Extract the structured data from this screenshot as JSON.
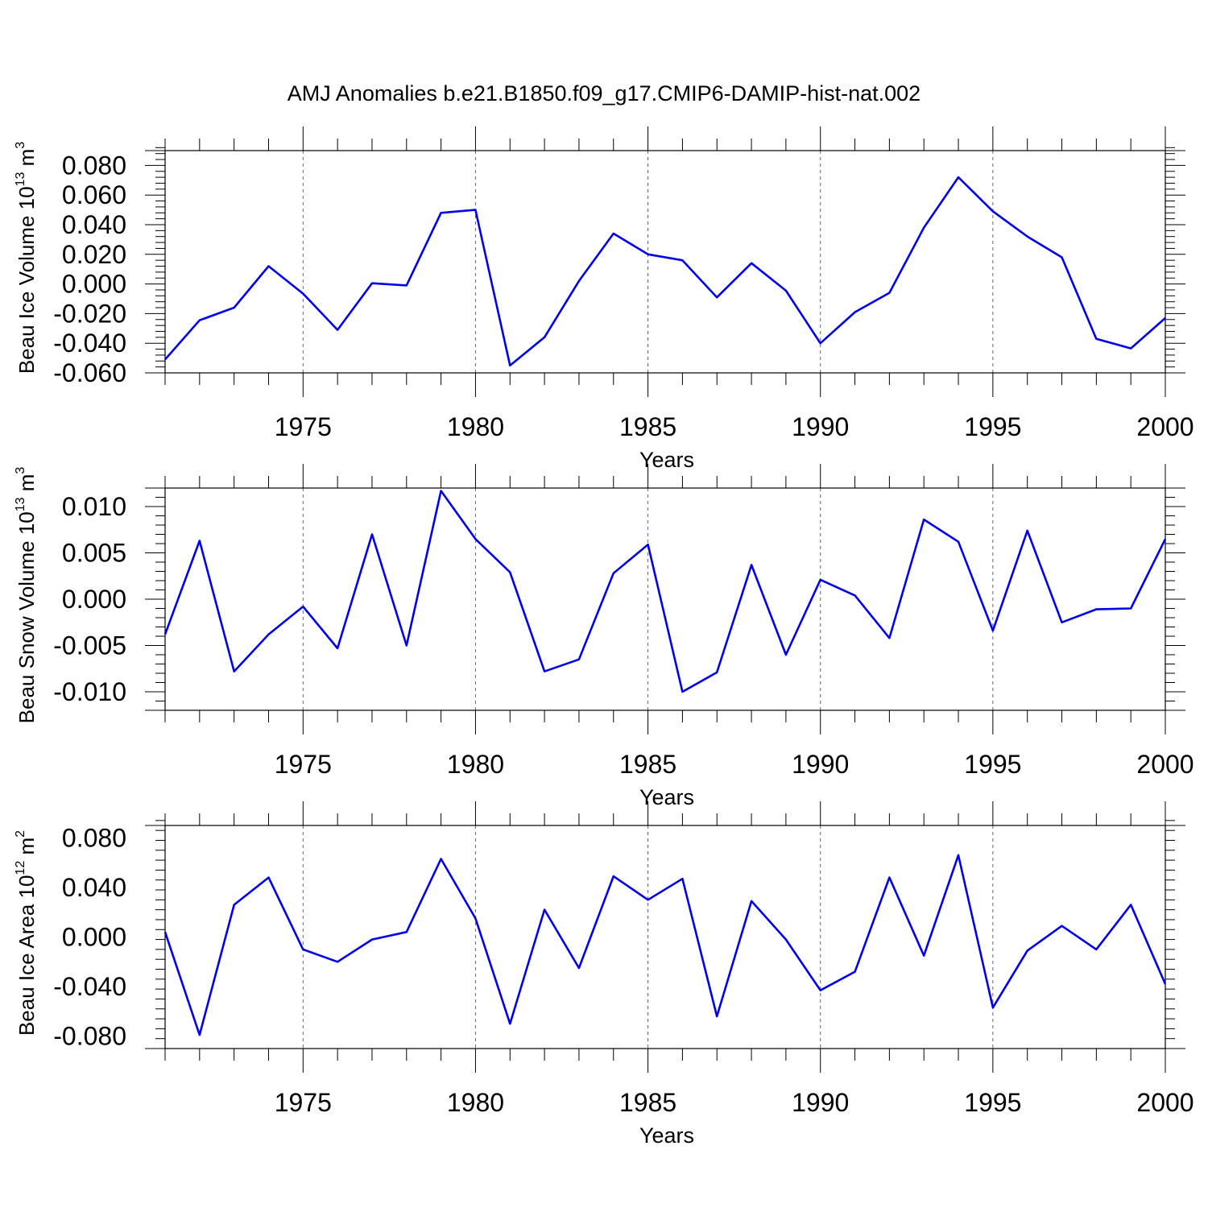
{
  "title": "AMJ Anomalies b.e21.B1850.f09_g17.CMIP6-DAMIP-hist-nat.002",
  "colors": {
    "series": "#0000ee",
    "grid": "#666666",
    "axis": "#000000"
  },
  "chart_data": [
    {
      "type": "line",
      "ylabel": {
        "text": "Beau Ice Volume 10",
        "exp": "13",
        "unit": " m",
        "unit_exp": "3"
      },
      "xlabel": "Years",
      "xlim": [
        1971,
        2000
      ],
      "ylim": [
        -0.06,
        0.09
      ],
      "xticks": [
        1975,
        1980,
        1985,
        1990,
        1995,
        2000
      ],
      "yticks": [
        -0.06,
        -0.04,
        -0.02,
        0.0,
        0.02,
        0.04,
        0.06,
        0.08
      ],
      "ytick_labels": [
        "-0.060",
        "-0.040",
        "-0.020",
        "0.000",
        "0.020",
        "0.040",
        "0.060",
        "0.080"
      ],
      "grid": "vertical dashed at major x ticks",
      "x": [
        1971,
        1972,
        1973,
        1974,
        1975,
        1976,
        1977,
        1978,
        1979,
        1980,
        1981,
        1982,
        1983,
        1984,
        1985,
        1986,
        1987,
        1988,
        1989,
        1990,
        1991,
        1992,
        1993,
        1994,
        1995,
        1996,
        1997,
        1998,
        1999,
        2000
      ],
      "values": [
        -0.051,
        -0.0245,
        -0.016,
        0.012,
        -0.0065,
        -0.031,
        0.0005,
        -0.001,
        0.048,
        0.05,
        -0.055,
        -0.036,
        0.002,
        0.034,
        0.02,
        0.016,
        -0.009,
        0.014,
        -0.0045,
        -0.04,
        -0.019,
        -0.006,
        0.038,
        0.072,
        0.049,
        0.032,
        0.018,
        -0.037,
        -0.0435,
        -0.023
      ]
    },
    {
      "type": "line",
      "ylabel": {
        "text": "Beau Snow Volume 10",
        "exp": "13",
        "unit": " m",
        "unit_exp": "3"
      },
      "xlabel": "Years",
      "xlim": [
        1971,
        2000
      ],
      "ylim": [
        -0.012,
        0.012
      ],
      "xticks": [
        1975,
        1980,
        1985,
        1990,
        1995,
        2000
      ],
      "yticks": [
        -0.01,
        -0.005,
        0.0,
        0.005,
        0.01
      ],
      "ytick_labels": [
        "-0.010",
        "-0.005",
        "0.000",
        "0.005",
        "0.010"
      ],
      "grid": "vertical dashed at major x ticks",
      "x": [
        1971,
        1972,
        1973,
        1974,
        1975,
        1976,
        1977,
        1978,
        1979,
        1980,
        1981,
        1982,
        1983,
        1984,
        1985,
        1986,
        1987,
        1988,
        1989,
        1990,
        1991,
        1992,
        1993,
        1994,
        1995,
        1996,
        1997,
        1998,
        1999,
        2000
      ],
      "values": [
        -0.0038,
        0.0063,
        -0.0078,
        -0.0038,
        -0.0008,
        -0.0053,
        0.007,
        -0.005,
        0.0117,
        0.0065,
        0.0029,
        -0.0078,
        -0.0065,
        0.0028,
        0.0059,
        -0.01,
        -0.0079,
        0.0037,
        -0.006,
        0.0021,
        0.0004,
        -0.0042,
        0.0086,
        0.0062,
        -0.0034,
        0.0074,
        -0.0025,
        -0.0011,
        -0.001,
        0.0065
      ]
    },
    {
      "type": "line",
      "ylabel": {
        "text": "Beau Ice Area 10",
        "exp": "12",
        "unit": " m",
        "unit_exp": "2"
      },
      "xlabel": "Years",
      "xlim": [
        1971,
        2000
      ],
      "ylim": [
        -0.09,
        0.09
      ],
      "xticks": [
        1975,
        1980,
        1985,
        1990,
        1995,
        2000
      ],
      "yticks": [
        -0.08,
        -0.04,
        0.0,
        0.04,
        0.08
      ],
      "ytick_labels": [
        "-0.080",
        "-0.040",
        "0.000",
        "0.040",
        "0.080"
      ],
      "grid": "vertical dashed at major x ticks",
      "x": [
        1971,
        1972,
        1973,
        1974,
        1975,
        1976,
        1977,
        1978,
        1979,
        1980,
        1981,
        1982,
        1983,
        1984,
        1985,
        1986,
        1987,
        1988,
        1989,
        1990,
        1991,
        1992,
        1993,
        1994,
        1995,
        1996,
        1997,
        1998,
        1999,
        2000
      ],
      "values": [
        0.004,
        -0.079,
        0.026,
        0.048,
        -0.01,
        -0.02,
        -0.002,
        0.004,
        0.063,
        0.015,
        -0.07,
        0.022,
        -0.025,
        0.049,
        0.03,
        0.047,
        -0.064,
        0.029,
        -0.002,
        -0.043,
        -0.028,
        0.048,
        -0.015,
        0.066,
        -0.057,
        -0.011,
        0.009,
        -0.01,
        0.026,
        -0.038
      ]
    }
  ]
}
